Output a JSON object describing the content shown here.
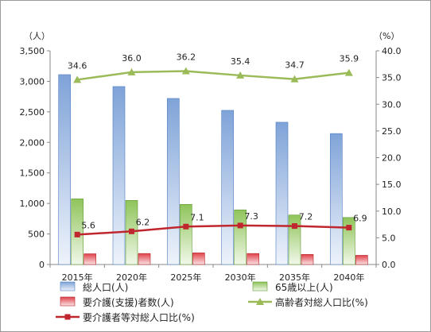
{
  "chart_data": {
    "type": "bar",
    "categories": [
      "2015年",
      "2020年",
      "2025年",
      "2030年",
      "2035年",
      "2040年"
    ],
    "left_axis": {
      "unit": "（人）",
      "ylim": [
        0,
        3500
      ],
      "ticks": [
        "0",
        "500",
        "1,000",
        "1,500",
        "2,000",
        "2,500",
        "3,000",
        "3,500"
      ],
      "tick_values": [
        0,
        500,
        1000,
        1500,
        2000,
        2500,
        3000,
        3500
      ]
    },
    "right_axis": {
      "unit": "（%）",
      "ylim": [
        0,
        40
      ],
      "ticks": [
        "0.0",
        "5.0",
        "10.0",
        "15.0",
        "20.0",
        "25.0",
        "30.0",
        "35.0",
        "40.0"
      ],
      "tick_values": [
        0,
        5,
        10,
        15,
        20,
        25,
        30,
        35,
        40
      ]
    },
    "series": [
      {
        "name": "総人口(人)",
        "type": "bar",
        "axis": "left",
        "color": "#7fa3d8",
        "values": [
          3110,
          2915,
          2720,
          2525,
          2330,
          2145
        ]
      },
      {
        "name": "65歳以上(人)",
        "type": "bar",
        "axis": "left",
        "color": "#8fc45a",
        "values": [
          1075,
          1050,
          985,
          895,
          810,
          770
        ]
      },
      {
        "name": "要介護(支援)者数(人)",
        "type": "bar",
        "axis": "left",
        "color": "#e0424a",
        "values": [
          175,
          180,
          190,
          180,
          165,
          150
        ]
      },
      {
        "name": "高齢者対総人口比(%)",
        "type": "line",
        "axis": "right",
        "color": "#9bbb59",
        "marker": "triangle",
        "values": [
          34.6,
          36.0,
          36.2,
          35.4,
          34.7,
          35.9
        ],
        "labels": [
          "34.6",
          "36.0",
          "36.2",
          "35.4",
          "34.7",
          "35.9"
        ]
      },
      {
        "name": "要介護者等対総人口比(%)",
        "type": "line",
        "axis": "right",
        "color": "#c0262d",
        "marker": "square",
        "values": [
          5.6,
          6.2,
          7.1,
          7.3,
          7.2,
          6.9
        ],
        "labels": [
          "5.6",
          "6.2",
          "7.1",
          "7.3",
          "7.2",
          "6.9"
        ]
      }
    ],
    "grid": false,
    "legend_position": "bottom"
  }
}
